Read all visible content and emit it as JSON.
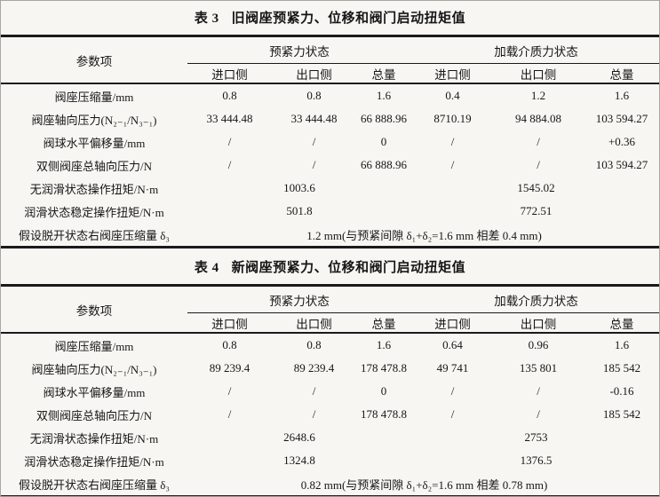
{
  "page": {
    "background_color": "#f7f6f2",
    "rule_color": "#1a1a1a"
  },
  "tables": [
    {
      "title_prefix": "表 3",
      "title": "旧阀座预紧力、位移和阀门启动扭矩值",
      "header": {
        "param_col": "参数项",
        "groups": [
          {
            "label": "预紧力状态",
            "cols": [
              "进口侧",
              "出口侧",
              "总量"
            ]
          },
          {
            "label": "加载介质力状态",
            "cols": [
              "进口侧",
              "出口侧",
              "总量"
            ]
          }
        ]
      },
      "rows": [
        {
          "label": "阀座压缩量/mm",
          "type": "data",
          "cells": [
            "0.8",
            "0.8",
            "1.6",
            "0.4",
            "1.2",
            "1.6"
          ]
        },
        {
          "label": "阀座轴向压力(N₂₋₁/N₃₋₁)",
          "type": "data",
          "cells": [
            "33 444.48",
            "33 444.48",
            "66 888.96",
            "8710.19",
            "94 884.08",
            "103 594.27"
          ]
        },
        {
          "label": "阀球水平偏移量/mm",
          "type": "data",
          "cells": [
            "/",
            "/",
            "0",
            "/",
            "/",
            "+0.36"
          ]
        },
        {
          "label": "双侧阀座总轴向压力/N",
          "type": "data",
          "cells": [
            "/",
            "/",
            "66 888.96",
            "/",
            "/",
            "103 594.27"
          ]
        },
        {
          "label": "无润滑状态操作扭矩/N·m",
          "type": "pair",
          "cells": [
            "1003.6",
            "1545.02"
          ]
        },
        {
          "label": "润滑状态稳定操作扭矩/N·m",
          "type": "pair",
          "cells": [
            "501.8",
            "772.51"
          ]
        },
        {
          "label": "假设脱开状态右阀座压缩量 δ₃",
          "type": "full",
          "cells": [
            "1.2  mm(与预紧间隙 δ₁+δ₂=1.6  mm 相差 0.4  mm)"
          ]
        }
      ]
    },
    {
      "title_prefix": "表 4",
      "title": "新阀座预紧力、位移和阀门启动扭矩值",
      "header": {
        "param_col": "参数项",
        "groups": [
          {
            "label": "预紧力状态",
            "cols": [
              "进口侧",
              "出口侧",
              "总量"
            ]
          },
          {
            "label": "加载介质力状态",
            "cols": [
              "进口侧",
              "出口侧",
              "总量"
            ]
          }
        ]
      },
      "rows": [
        {
          "label": "阀座压缩量/mm",
          "type": "data",
          "cells": [
            "0.8",
            "0.8",
            "1.6",
            "0.64",
            "0.96",
            "1.6"
          ]
        },
        {
          "label": "阀座轴向压力(N₂₋₁/N₃₋₁)",
          "type": "data",
          "cells": [
            "89 239.4",
            "89 239.4",
            "178 478.8",
            "49 741",
            "135 801",
            "185 542"
          ]
        },
        {
          "label": "阀球水平偏移量/mm",
          "type": "data",
          "cells": [
            "/",
            "/",
            "0",
            "/",
            "/",
            "-0.16"
          ]
        },
        {
          "label": "双侧阀座总轴向压力/N",
          "type": "data",
          "cells": [
            "/",
            "/",
            "178 478.8",
            "/",
            "/",
            "185 542"
          ]
        },
        {
          "label": "无润滑状态操作扭矩/N·m",
          "type": "pair",
          "cells": [
            "2648.6",
            "2753"
          ]
        },
        {
          "label": "润滑状态稳定操作扭矩/N·m",
          "type": "pair",
          "cells": [
            "1324.8",
            "1376.5"
          ]
        },
        {
          "label": "假设脱开状态右阀座压缩量 δ₃",
          "type": "full",
          "cells": [
            "0.82  mm(与预紧间隙 δ₁+δ₂=1.6  mm 相差 0.78  mm)"
          ]
        }
      ]
    }
  ]
}
